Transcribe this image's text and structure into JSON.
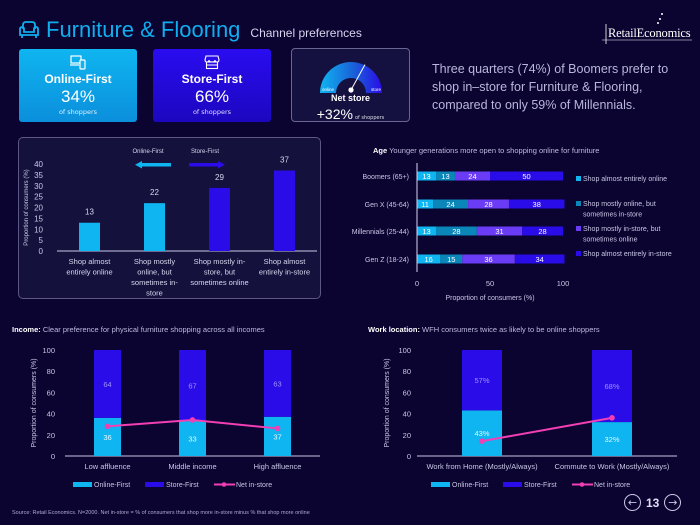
{
  "header": {
    "title": "Furniture & Flooring",
    "subtitle": "Channel preferences",
    "title_icon": "sofa-icon",
    "logo_text": "RetailEconomics"
  },
  "colors": {
    "online_first": "#0fb5f0",
    "online_mostly": "#0b86b8",
    "store_mostly": "#6a3cf5",
    "store_first": "#2a0ce8",
    "net_line": "#f23fb4",
    "background": "#0b0330"
  },
  "kpis": {
    "online": {
      "icon": "devices-icon",
      "label": "Online-First",
      "value": "34%",
      "sub": "of shoppers"
    },
    "store": {
      "icon": "storefront-icon",
      "label": "Store-First",
      "value": "66%",
      "sub": "of shoppers"
    },
    "net": {
      "label": "Net store",
      "value": "+32%",
      "sub": "of shoppers",
      "gauge_left": "online",
      "gauge_right": "store",
      "gauge_level_pct": 32
    }
  },
  "headline": "Three quarters (74%) of Boomers prefer to shop in–store for Furniture & Flooring, compared to only 59% of Millennials.",
  "footer": {
    "source": "Source: Retail Economics. N=2000. Net in-store = % of consumers that shop more in-store minus % that shop more online",
    "page": "13",
    "prev_icon": "arrow-left-circle-icon",
    "next_icon": "arrow-right-circle-icon"
  },
  "chart_data": [
    {
      "type": "bar",
      "title": "",
      "categories": [
        "Shop almost entirely online",
        "Shop mostly online, but sometimes in-store",
        "Shop mostly in-store, but sometimes online",
        "Shop almost entirely in-store"
      ],
      "category_lines": [
        [
          "Shop almost",
          "entirely online"
        ],
        [
          "Shop mostly",
          "online, but",
          "sometimes in-",
          "store"
        ],
        [
          "Shop mostly in-",
          "store, but",
          "sometimes online"
        ],
        [
          "Shop almost",
          "entirely in-store"
        ]
      ],
      "values": [
        13,
        22,
        29,
        37
      ],
      "bar_groups": [
        "online",
        "online",
        "store",
        "store"
      ],
      "ylabel": "Proportion of consumers (%)",
      "xlabel": "",
      "ylim": [
        0,
        40
      ],
      "yticks": [
        0,
        5,
        10,
        15,
        20,
        25,
        30,
        35,
        40
      ],
      "annotations": [
        {
          "text": "Online-First",
          "arrow": "left"
        },
        {
          "text": "Store-First",
          "arrow": "right"
        }
      ],
      "grid": false
    },
    {
      "type": "bar",
      "orientation": "horizontal-stacked",
      "title_bold": "Age",
      "title": "Younger generations more open to shopping online for furniture",
      "categories": [
        "Boomers (65+)",
        "Gen X (45-64)",
        "Millennials (25-44)",
        "Gen Z (18-24)"
      ],
      "series": [
        {
          "name": "Shop almost entirely online",
          "values": [
            13,
            11,
            13,
            16
          ]
        },
        {
          "name": "Shop mostly online, but sometimes in-store",
          "values": [
            13,
            24,
            28,
            15
          ]
        },
        {
          "name": "Shop mostly in-store, but sometimes online",
          "values": [
            24,
            28,
            31,
            36
          ]
        },
        {
          "name": "Shop almost entirely in-store",
          "values": [
            50,
            38,
            28,
            34
          ]
        }
      ],
      "xlabel": "Proportion of consumers (%)",
      "xlim": [
        0,
        100
      ],
      "xticks": [
        0,
        50,
        100
      ],
      "legend": "right",
      "grid": false
    },
    {
      "type": "bar",
      "orientation": "vertical-stacked-with-line",
      "title_bold": "Income:",
      "title": "Clear preference for physical furniture shopping across all incomes",
      "categories": [
        "Low affluence",
        "Middle income",
        "High affluence"
      ],
      "series": [
        {
          "name": "Online-First",
          "values": [
            36,
            33,
            37
          ],
          "labels": [
            "36",
            "33",
            "37"
          ]
        },
        {
          "name": "Store-First",
          "values": [
            64,
            67,
            63
          ],
          "labels": [
            "64",
            "67",
            "63"
          ]
        },
        {
          "name": "Net in-store",
          "type": "line",
          "values": [
            28,
            34,
            26
          ]
        }
      ],
      "ylabel": "Proportion of consumers (%)",
      "ylim": [
        0,
        100
      ],
      "yticks": [
        0,
        20,
        40,
        60,
        80,
        100
      ],
      "legend": "bottom",
      "grid": false
    },
    {
      "type": "bar",
      "orientation": "vertical-stacked-with-line",
      "title_bold": "Work location:",
      "title": "WFH consumers twice as likely to be online shoppers",
      "categories": [
        "Work from Home (Mostly/Always)",
        "Commute to Work (Mostly/Always)"
      ],
      "series": [
        {
          "name": "Online-First",
          "values": [
            43,
            32
          ],
          "labels": [
            "43%",
            "32%"
          ]
        },
        {
          "name": "Store-First",
          "values": [
            57,
            68
          ],
          "labels": [
            "57%",
            "68%"
          ]
        },
        {
          "name": "Net in-store",
          "type": "line",
          "values": [
            14,
            36
          ]
        }
      ],
      "ylabel": "Proportion of consumers (%)",
      "ylim": [
        0,
        100
      ],
      "yticks": [
        0,
        20,
        40,
        60,
        80,
        100
      ],
      "legend": "bottom",
      "grid": false
    }
  ]
}
